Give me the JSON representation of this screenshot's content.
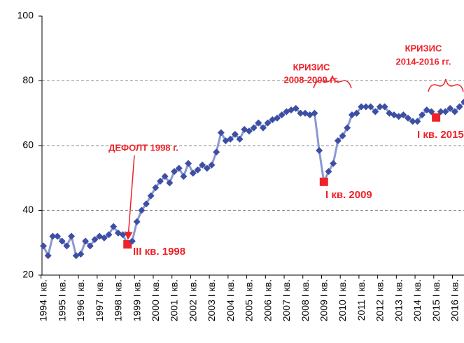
{
  "chart_data": {
    "type": "line",
    "categories": [
      "1994 I кв.",
      null,
      null,
      null,
      "1995 I кв.",
      null,
      null,
      null,
      "1996 I кв.",
      null,
      null,
      null,
      "1997 I кв.",
      null,
      null,
      null,
      "1998 I кв.",
      null,
      null,
      null,
      "1999 I кв.",
      null,
      null,
      null,
      "2000 I кв.",
      null,
      null,
      null,
      "2001 I кв.",
      null,
      null,
      null,
      "2002 I кв.",
      null,
      null,
      null,
      "2003 I кв.",
      null,
      null,
      null,
      "2004 I кв.",
      null,
      null,
      null,
      "2005 I кв.",
      null,
      null,
      null,
      "2006 I кв.",
      null,
      null,
      null,
      "2007 I кв.",
      null,
      null,
      null,
      "2008 I кв.",
      null,
      null,
      null,
      "2009 I кв.",
      null,
      null,
      null,
      "2010 I кв.",
      null,
      null,
      null,
      "2011 I кв.",
      null,
      null,
      null,
      "2012 I кв.",
      null,
      null,
      null,
      "2013 I кв.",
      null,
      null,
      null,
      "2014 I кв.",
      null,
      null,
      null,
      "2015 I кв.",
      null,
      null,
      null,
      "2016 I кв.",
      null,
      null
    ],
    "series": [
      {
        "color": "#3d4fa3",
        "line_color": "#8c98d2",
        "values": [
          29,
          26,
          32,
          32,
          30.5,
          29,
          32,
          26,
          26.5,
          30.5,
          29,
          31,
          32,
          31.5,
          32.5,
          35,
          33,
          32.5,
          29.5,
          30.5,
          36.5,
          40,
          42,
          44.5,
          47,
          49,
          50.5,
          48.5,
          52,
          53,
          50.5,
          54.5,
          51.5,
          52.5,
          54,
          53,
          54,
          58,
          64,
          61.5,
          62,
          63.5,
          62,
          65,
          64.5,
          65.5,
          67,
          65.5,
          67,
          68,
          68.5,
          69.5,
          70.5,
          71,
          71.5,
          70,
          70,
          69.5,
          70,
          58.5,
          48.8,
          52,
          54.5,
          61.5,
          63,
          65.5,
          69.5,
          70,
          72,
          72,
          72,
          70.5,
          72,
          72,
          70,
          69.5,
          69,
          69.5,
          68.5,
          67.5,
          67.5,
          69.5,
          71,
          70.5,
          68.7,
          70.5,
          70.5,
          71.5,
          70.5,
          72,
          73.5
        ]
      }
    ],
    "highlights": [
      18,
      60,
      84
    ],
    "highlight_color": "#ee2229",
    "annotations": [
      "ДЕФОЛТ 1998 г.",
      "III кв. 1998",
      "КРИЗИС",
      "2008-2009 гг.",
      "I кв. 2009",
      "КРИЗИС",
      "2014-2016 гг.",
      "I кв. 2015"
    ],
    "ylim": [
      20,
      100
    ],
    "yticks": [
      20,
      40,
      60,
      80,
      100
    ],
    "grid": true
  }
}
